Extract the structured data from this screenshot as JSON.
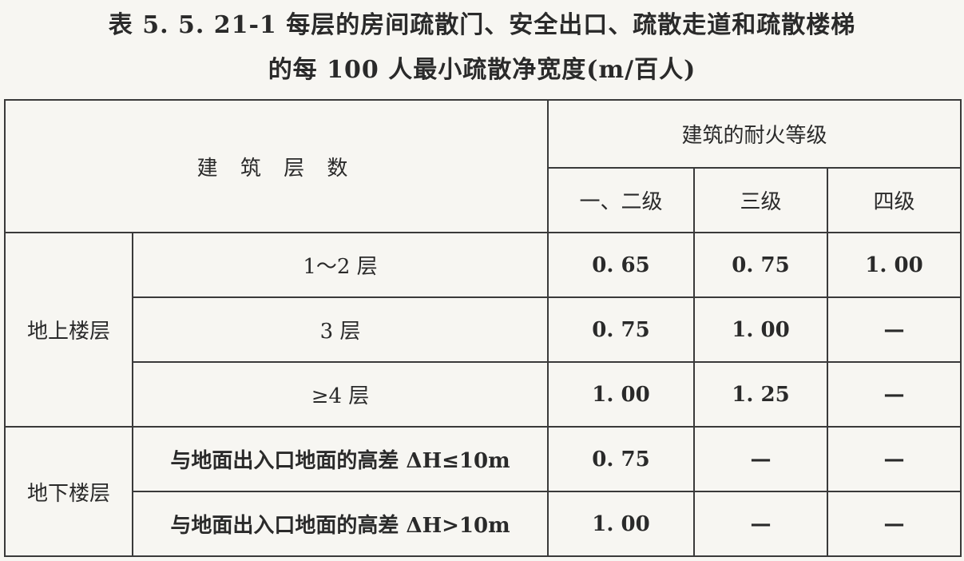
{
  "title": {
    "line1": "表 5. 5. 21-1   每层的房间疏散门、安全出口、疏散走道和疏散楼梯",
    "line2": "的每 100 人最小疏散净宽度(m/百人)"
  },
  "table": {
    "header": {
      "floors": "建 筑 层 数",
      "fire_rating": "建筑的耐火等级",
      "grades": [
        "一、二级",
        "三级",
        "四级"
      ]
    },
    "groups": [
      {
        "label": "地上楼层",
        "rows": [
          {
            "floor": "1～2 层",
            "values": [
              "0. 65",
              "0. 75",
              "1. 00"
            ]
          },
          {
            "floor": "3 层",
            "values": [
              "0. 75",
              "1. 00",
              "—"
            ]
          },
          {
            "floor": "≥4 层",
            "values": [
              "1. 00",
              "1. 25",
              "—"
            ]
          }
        ]
      },
      {
        "label": "地下楼层",
        "rows": [
          {
            "floor": "与地面出入口地面的高差 ΔH≤10m",
            "values": [
              "0. 75",
              "—",
              "—"
            ]
          },
          {
            "floor": "与地面出入口地面的高差 ΔH>10m",
            "values": [
              "1. 00",
              "—",
              "—"
            ]
          }
        ]
      }
    ]
  }
}
